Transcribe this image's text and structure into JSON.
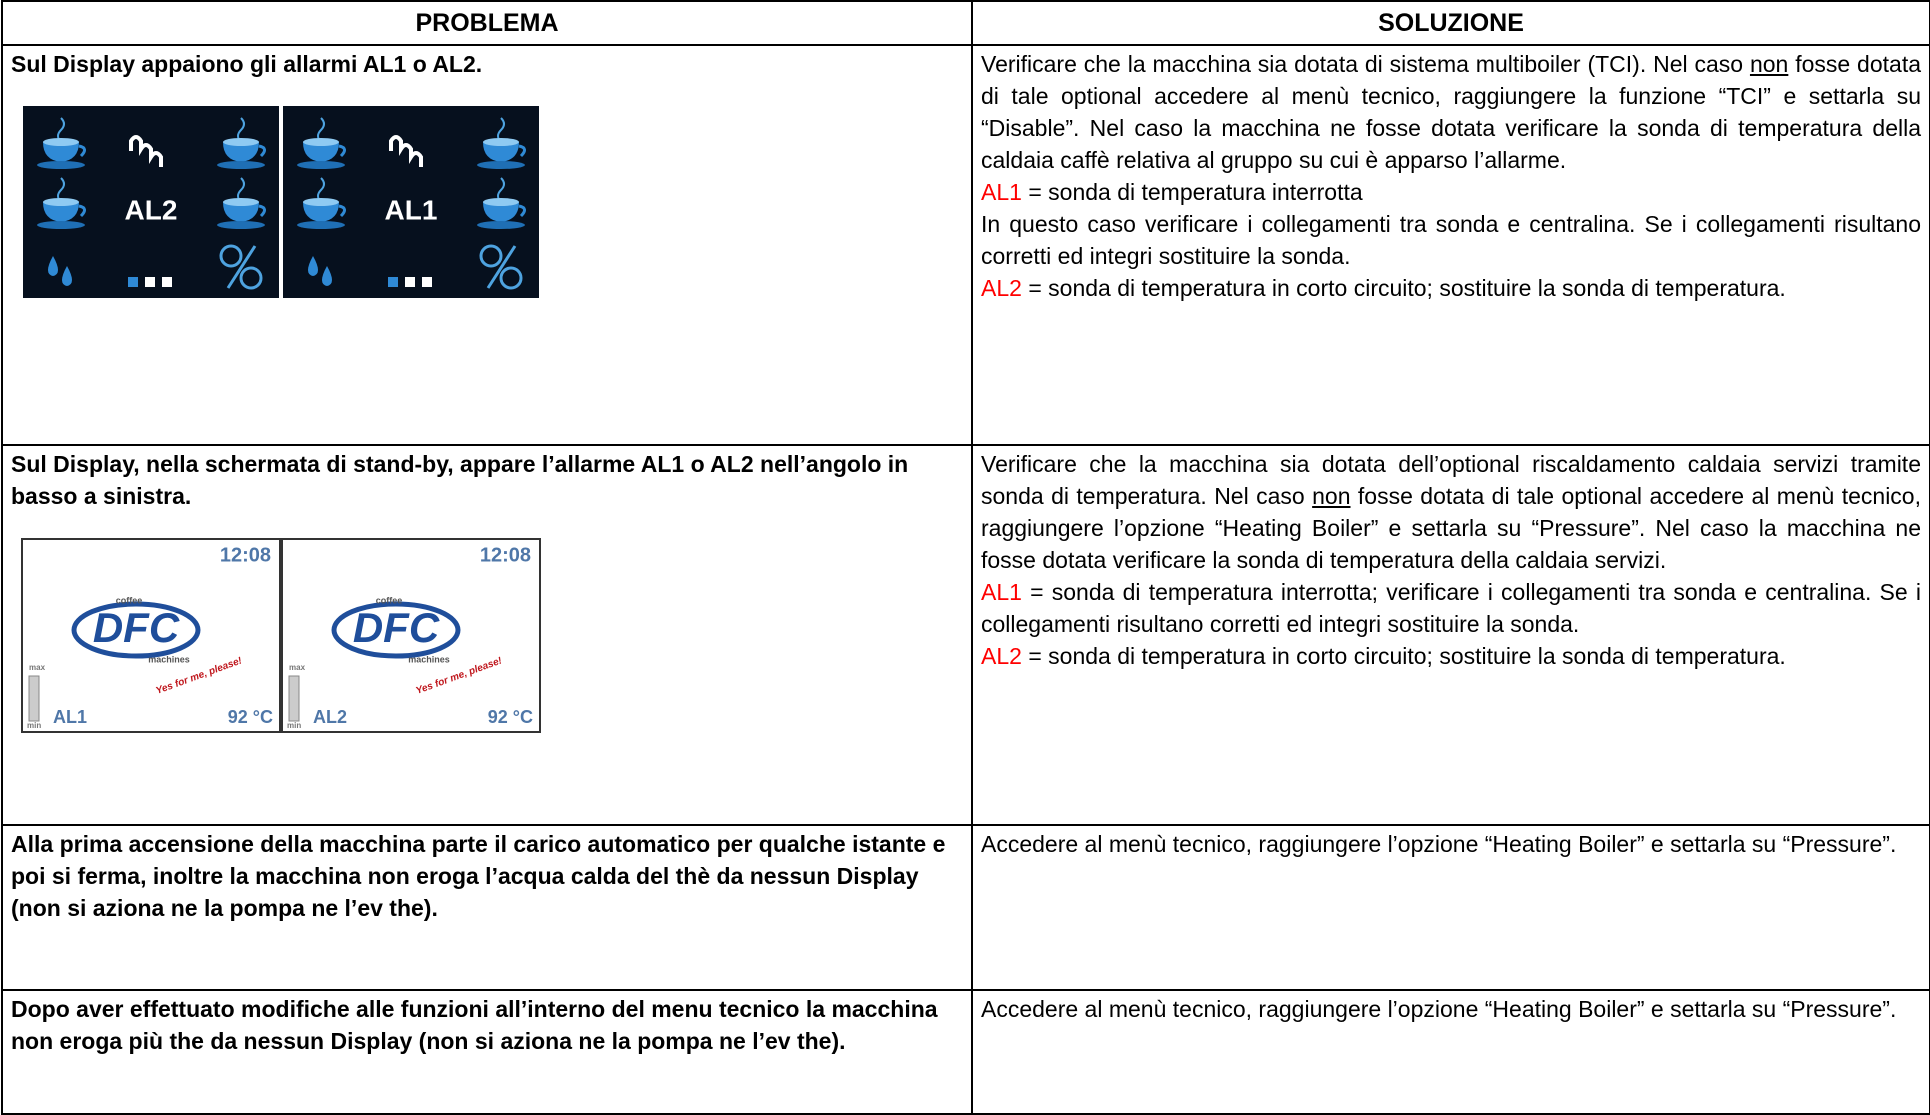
{
  "table": {
    "headers": [
      "PROBLEMA",
      "SOLUZIONE"
    ],
    "rows": [
      {
        "problem": "Sul Display appaiono gli allarmi AL1 o AL2.",
        "dark_displays": [
          "AL2",
          "AL1"
        ],
        "solution": [
          [
            "Verificare che la macchina sia dotata di sistema multiboiler (TCI). Nel caso ",
            {
              "text": "non",
              "underline": true
            },
            " fosse dotata di tale optional accedere al menù tecnico, raggiungere la funzione “TCI” e settarla su “Disable”. Nel caso la macchina ne fosse dotata verificare la sonda di temperatura della caldaia caffè relativa al gruppo su cui è apparso l’allarme."
          ],
          [
            {
              "text": "AL1",
              "color": "#ff0000"
            },
            " = sonda di temperatura interrotta"
          ],
          [
            "In questo caso verificare i collegamenti tra sonda e centralina. Se i collegamenti risultano corretti ed integri sostituire la sonda."
          ],
          [
            {
              "text": "AL2",
              "color": "#ff0000"
            },
            " = sonda di temperatura in corto circuito; sostituire la sonda di temperatura."
          ]
        ]
      },
      {
        "problem": "Sul Display, nella schermata di stand-by, appare l’allarme AL1 o AL2 nell’angolo in basso a sinistra.",
        "standby_displays": [
          {
            "time": "12:08",
            "brand_top": "coffee",
            "brand": "DFC",
            "brand_bottom": "machines",
            "slogan": "Yes for me, please!",
            "max": "max",
            "min": "min",
            "alarm": "AL1",
            "temp": "92 °C"
          },
          {
            "time": "12:08",
            "brand_top": "coffee",
            "brand": "DFC",
            "brand_bottom": "machines",
            "slogan": "Yes for me, please!",
            "max": "max",
            "min": "min",
            "alarm": "AL2",
            "temp": "92 °C"
          }
        ],
        "solution": [
          [
            "Verificare che la macchina sia dotata dell’optional riscaldamento caldaia servizi tramite sonda di temperatura. Nel caso ",
            {
              "text": "non",
              "underline": true
            },
            " fosse dotata di tale optional accedere al menù tecnico, raggiungere l’opzione “Heating Boiler” e settarla su “Pressure”. Nel caso la macchina ne fosse dotata verificare la sonda di temperatura della caldaia servizi."
          ],
          [
            {
              "text": "AL1",
              "color": "#ff0000"
            },
            " = sonda di temperatura interrotta; verificare i collegamenti tra sonda e centralina. Se i collegamenti risultano corretti ed integri sostituire la sonda."
          ],
          [
            {
              "text": "AL2",
              "color": "#ff0000"
            },
            " = sonda di temperatura in corto circuito; sostituire la sonda di temperatura."
          ]
        ]
      },
      {
        "problem": "Alla prima accensione della macchina parte il carico automatico per qualche istante e poi si ferma, inoltre la macchina non eroga l’acqua calda del thè da nessun Display (non si aziona ne la pompa ne l’ev the).",
        "solution": [
          [
            "Accedere al menù tecnico, raggiungere l’opzione “Heating Boiler” e settarla su “Pressure”."
          ]
        ]
      },
      {
        "problem": "Dopo aver effettuato modifiche alle funzioni all’interno del menu tecnico la macchina non eroga più the da nessun Display (non si aziona ne la pompa ne l’ev the).",
        "solution": [
          [
            "Accedere al menù tecnico, raggiungere l’opzione “Heating Boiler” e settarla su “Pressure”."
          ]
        ]
      }
    ]
  }
}
